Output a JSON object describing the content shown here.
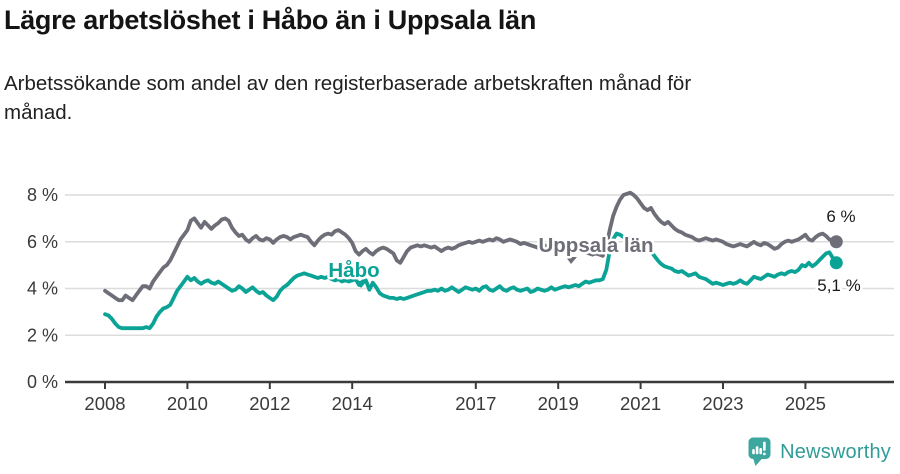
{
  "header": {
    "title": "Lägre arbetslöshet i Håbo än i Uppsala län",
    "subtitle_lines": [
      "Arbetssökande som andel av den registerbaserade arbetskraften månad för",
      "månad."
    ]
  },
  "chart_data": {
    "type": "line",
    "title": "Lägre arbetslöshet i Håbo än i Uppsala län",
    "xlabel": "",
    "ylabel": "",
    "grid": "horizontal",
    "legend_position": "inline-labels",
    "x_start": 2008.0,
    "x_step_months": 1,
    "x_end_label_values": {
      "uppsala_lan": "6 %",
      "habo": "5,1 %"
    },
    "xlim": [
      2007.0,
      2027.1
    ],
    "ylim": [
      0,
      8.6
    ],
    "y_ticks": [
      {
        "value": 8,
        "label": "8 %"
      },
      {
        "value": 6,
        "label": "6 %"
      },
      {
        "value": 4,
        "label": "4 %"
      },
      {
        "value": 2,
        "label": "2 %"
      },
      {
        "value": 0,
        "label": "0 %"
      }
    ],
    "x_ticks": [
      {
        "value": 2008,
        "label": "2008"
      },
      {
        "value": 2010,
        "label": "2010"
      },
      {
        "value": 2012,
        "label": "2012"
      },
      {
        "value": 2014,
        "label": "2014"
      },
      {
        "value": 2017,
        "label": "2017"
      },
      {
        "value": 2019,
        "label": "2019"
      },
      {
        "value": 2021,
        "label": "2021"
      },
      {
        "value": 2023,
        "label": "2023"
      },
      {
        "value": 2025,
        "label": "2025"
      }
    ],
    "series": [
      {
        "id": "uppsala-lan",
        "name": "Uppsala län",
        "color": "#6E6E79",
        "end_label": "6 %",
        "values": [
          3.9,
          3.8,
          3.7,
          3.6,
          3.5,
          3.5,
          3.7,
          3.6,
          3.5,
          3.7,
          3.9,
          4.1,
          4.1,
          4.0,
          4.3,
          4.5,
          4.7,
          4.9,
          5.0,
          5.2,
          5.5,
          5.8,
          6.1,
          6.3,
          6.5,
          6.9,
          7.0,
          6.8,
          6.6,
          6.85,
          6.7,
          6.55,
          6.7,
          6.8,
          6.95,
          7.0,
          6.9,
          6.6,
          6.4,
          6.25,
          6.3,
          6.1,
          6.0,
          6.15,
          6.25,
          6.1,
          6.05,
          6.15,
          6.1,
          5.95,
          6.1,
          6.2,
          6.25,
          6.2,
          6.1,
          6.2,
          6.25,
          6.3,
          6.25,
          6.2,
          6.0,
          5.85,
          6.05,
          6.2,
          6.3,
          6.35,
          6.3,
          6.45,
          6.5,
          6.4,
          6.3,
          6.15,
          5.95,
          5.6,
          5.45,
          5.6,
          5.7,
          5.55,
          5.45,
          5.6,
          5.7,
          5.75,
          5.7,
          5.6,
          5.5,
          5.2,
          5.1,
          5.35,
          5.6,
          5.75,
          5.8,
          5.85,
          5.8,
          5.85,
          5.8,
          5.75,
          5.8,
          5.7,
          5.6,
          5.7,
          5.75,
          5.7,
          5.75,
          5.85,
          5.9,
          5.95,
          6.0,
          5.95,
          6.0,
          6.05,
          6.0,
          6.05,
          6.1,
          6.05,
          6.15,
          6.1,
          6.0,
          6.05,
          6.1,
          6.05,
          6.0,
          5.9,
          5.95,
          5.9,
          5.85,
          5.8,
          5.75,
          5.8,
          5.85,
          5.8,
          5.75,
          5.7,
          5.65,
          5.6,
          5.65,
          5.6,
          5.55,
          5.6,
          5.65,
          5.6,
          5.55,
          5.5,
          5.45,
          5.5,
          5.45,
          5.4,
          5.8,
          6.5,
          7.1,
          7.5,
          7.8,
          8.0,
          8.05,
          8.1,
          8.0,
          7.85,
          7.65,
          7.45,
          7.35,
          7.45,
          7.2,
          7.0,
          6.85,
          6.75,
          6.85,
          6.7,
          6.55,
          6.45,
          6.4,
          6.3,
          6.25,
          6.2,
          6.1,
          6.05,
          6.1,
          6.15,
          6.1,
          6.05,
          6.1,
          6.05,
          6.0,
          5.9,
          5.85,
          5.8,
          5.85,
          5.9,
          5.85,
          5.8,
          5.9,
          6.0,
          5.9,
          5.85,
          5.95,
          5.9,
          5.8,
          5.7,
          5.75,
          5.9,
          6.0,
          6.05,
          6.0,
          6.05,
          6.1,
          6.2,
          6.3,
          6.1,
          6.05,
          6.2,
          6.3,
          6.35,
          6.25,
          6.1,
          6.05,
          6.0
        ]
      },
      {
        "id": "habo",
        "name": "Håbo",
        "color": "#0AA396",
        "end_label": "5,1 %",
        "values": [
          2.9,
          2.85,
          2.7,
          2.5,
          2.35,
          2.3,
          2.3,
          2.3,
          2.3,
          2.3,
          2.3,
          2.3,
          2.35,
          2.3,
          2.5,
          2.8,
          3.0,
          3.15,
          3.2,
          3.3,
          3.6,
          3.9,
          4.1,
          4.3,
          4.5,
          4.35,
          4.45,
          4.3,
          4.2,
          4.3,
          4.35,
          4.25,
          4.2,
          4.3,
          4.2,
          4.1,
          4.0,
          3.9,
          3.95,
          4.1,
          4.0,
          3.85,
          3.95,
          4.05,
          3.9,
          3.8,
          3.85,
          3.7,
          3.6,
          3.5,
          3.65,
          3.9,
          4.05,
          4.15,
          4.3,
          4.45,
          4.55,
          4.6,
          4.65,
          4.6,
          4.55,
          4.5,
          4.45,
          4.5,
          4.45,
          4.5,
          4.4,
          4.35,
          4.4,
          4.3,
          4.35,
          4.3,
          4.35,
          4.4,
          4.15,
          4.3,
          4.35,
          3.95,
          4.25,
          4.05,
          3.8,
          3.7,
          3.65,
          3.6,
          3.6,
          3.55,
          3.6,
          3.55,
          3.6,
          3.65,
          3.7,
          3.75,
          3.8,
          3.85,
          3.9,
          3.9,
          3.95,
          3.9,
          4.0,
          3.9,
          3.95,
          4.05,
          3.95,
          3.85,
          3.95,
          4.05,
          4.0,
          3.95,
          4.0,
          3.9,
          4.05,
          4.1,
          3.95,
          3.9,
          4.0,
          4.1,
          3.95,
          3.9,
          4.0,
          4.05,
          3.95,
          3.9,
          3.95,
          4.0,
          3.85,
          3.9,
          4.0,
          3.95,
          3.9,
          3.95,
          4.05,
          3.95,
          4.0,
          4.05,
          4.1,
          4.05,
          4.1,
          4.15,
          4.1,
          4.2,
          4.3,
          4.25,
          4.3,
          4.35,
          4.35,
          4.4,
          4.8,
          5.6,
          6.1,
          6.35,
          6.3,
          6.2,
          6.05,
          5.9,
          5.75,
          5.65,
          5.6,
          5.65,
          5.75,
          5.6,
          5.4,
          5.2,
          5.05,
          4.95,
          4.9,
          4.85,
          4.75,
          4.7,
          4.75,
          4.65,
          4.55,
          4.6,
          4.65,
          4.5,
          4.45,
          4.4,
          4.3,
          4.2,
          4.25,
          4.2,
          4.15,
          4.2,
          4.25,
          4.2,
          4.25,
          4.35,
          4.25,
          4.2,
          4.35,
          4.5,
          4.45,
          4.4,
          4.5,
          4.6,
          4.55,
          4.5,
          4.6,
          4.65,
          4.6,
          4.7,
          4.75,
          4.7,
          4.8,
          5.0,
          4.95,
          5.1,
          4.95,
          5.05,
          5.2,
          5.35,
          5.5,
          5.55,
          5.3,
          5.1
        ]
      }
    ]
  },
  "footer": {
    "brand": "Newsworthy",
    "brand_color": "#2F9D96",
    "icon": "newsworthy-bar-chart-bubble"
  }
}
